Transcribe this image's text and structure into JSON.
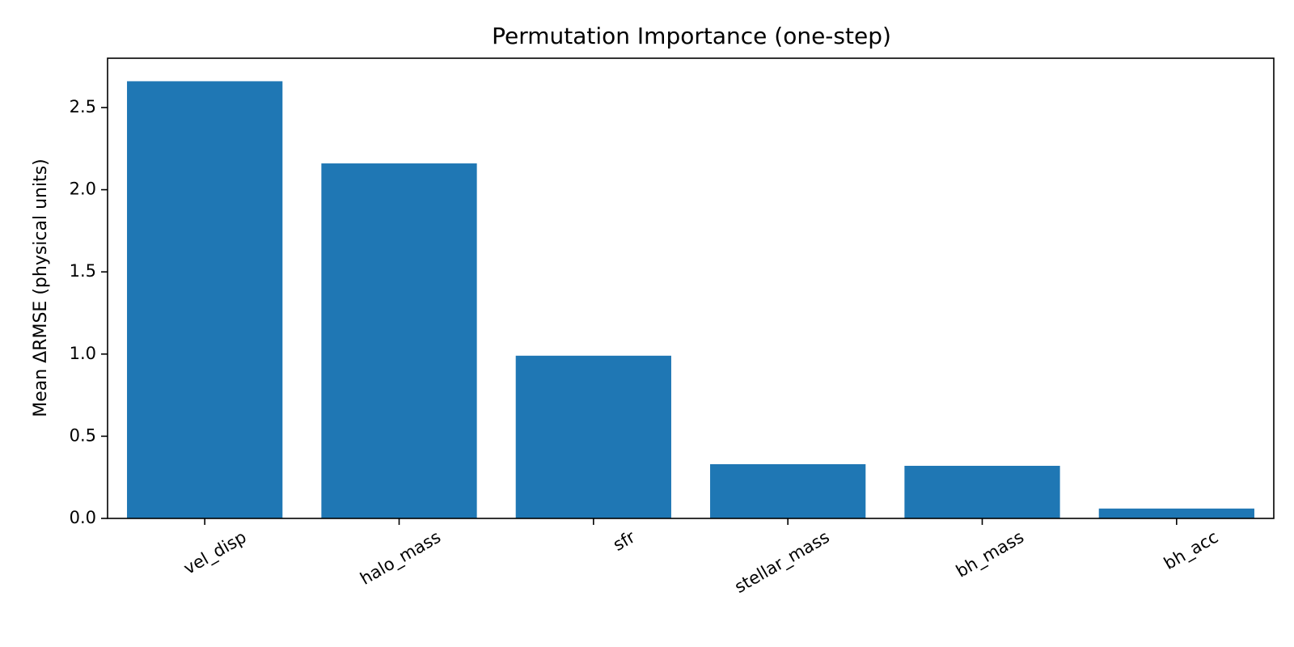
{
  "chart_data": {
    "type": "bar",
    "title": "Permutation Importance (one-step)",
    "xlabel": "",
    "ylabel": "Mean ΔRMSE (physical units)",
    "categories": [
      "vel_disp",
      "halo_mass",
      "sfr",
      "stellar_mass",
      "bh_mass",
      "bh_acc"
    ],
    "values": [
      2.66,
      2.16,
      0.99,
      0.33,
      0.32,
      0.06
    ],
    "ylim": [
      0,
      2.8
    ],
    "yticks": [
      0.0,
      0.5,
      1.0,
      1.5,
      2.0,
      2.5
    ],
    "ytick_labels": [
      "0.0",
      "0.5",
      "1.0",
      "1.5",
      "2.0",
      "2.5"
    ],
    "grid": false,
    "colors": {
      "bar": "#1f77b4",
      "axes": "#000000"
    }
  }
}
